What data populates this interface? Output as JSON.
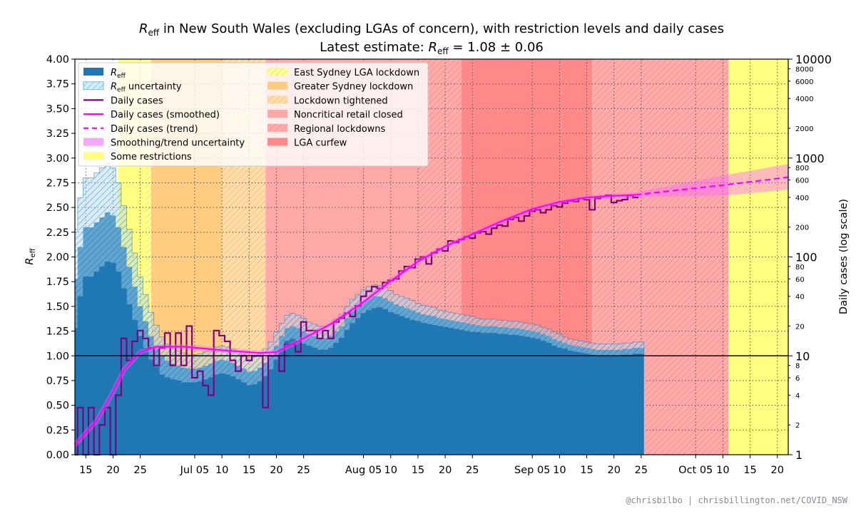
{
  "chart_data": {
    "type": "bar",
    "title_parts": {
      "r": "R",
      "sub": "eff",
      "line1_rest": " in New South Wales (excluding LGAs of concern), with restriction levels and daily cases",
      "line2_prefix": "Latest estimate: ",
      "line2_rest": " = 1.08 ± 0.06"
    },
    "ylabel_left": {
      "r": "R",
      "sub": "eff"
    },
    "ylabel_right": "Daily cases (log scale)",
    "ylim_left": [
      0,
      4
    ],
    "ylim_right_log": [
      1,
      10000
    ],
    "x_range": [
      "06-13",
      "10-22"
    ],
    "yticks_left": [
      "0.00",
      "0.25",
      "0.50",
      "0.75",
      "1.00",
      "1.25",
      "1.50",
      "1.75",
      "2.00",
      "2.25",
      "2.50",
      "2.75",
      "3.00",
      "3.25",
      "3.50",
      "3.75",
      "4.00"
    ],
    "yticks_right_major": [
      {
        "v": 1,
        "label": "1"
      },
      {
        "v": 10,
        "label": "10"
      },
      {
        "v": 100,
        "label": "100"
      },
      {
        "v": 1000,
        "label": "1000"
      },
      {
        "v": 10000,
        "label": "10000"
      }
    ],
    "yticks_right_minor": [
      {
        "v": 2,
        "label": "2"
      },
      {
        "v": 4,
        "label": "4"
      },
      {
        "v": 6,
        "label": "6"
      },
      {
        "v": 8,
        "label": "8"
      },
      {
        "v": 20,
        "label": "20"
      },
      {
        "v": 40,
        "label": "40"
      },
      {
        "v": 60,
        "label": "60"
      },
      {
        "v": 80,
        "label": "80"
      },
      {
        "v": 200,
        "label": "200"
      },
      {
        "v": 400,
        "label": "400"
      },
      {
        "v": 600,
        "label": "600"
      },
      {
        "v": 800,
        "label": "800"
      },
      {
        "v": 2000,
        "label": "2000"
      },
      {
        "v": 4000,
        "label": "4000"
      },
      {
        "v": 6000,
        "label": "6000"
      },
      {
        "v": 8000,
        "label": "8000"
      }
    ],
    "xticks": [
      {
        "d": "06-15",
        "label": "15"
      },
      {
        "d": "06-20",
        "label": "20"
      },
      {
        "d": "06-25",
        "label": "25"
      },
      {
        "d": "07-05",
        "label": "Jul 05"
      },
      {
        "d": "07-10",
        "label": "10"
      },
      {
        "d": "07-15",
        "label": "15"
      },
      {
        "d": "07-20",
        "label": "20"
      },
      {
        "d": "07-25",
        "label": "25"
      },
      {
        "d": "08-05",
        "label": "Aug 05"
      },
      {
        "d": "08-10",
        "label": "10"
      },
      {
        "d": "08-15",
        "label": "15"
      },
      {
        "d": "08-20",
        "label": "20"
      },
      {
        "d": "08-25",
        "label": "25"
      },
      {
        "d": "09-05",
        "label": "Sep 05"
      },
      {
        "d": "09-10",
        "label": "10"
      },
      {
        "d": "09-15",
        "label": "15"
      },
      {
        "d": "09-20",
        "label": "20"
      },
      {
        "d": "09-25",
        "label": "25"
      },
      {
        "d": "10-05",
        "label": "Oct 05"
      },
      {
        "d": "10-10",
        "label": "10"
      },
      {
        "d": "10-15",
        "label": "15"
      },
      {
        "d": "10-20",
        "label": "20"
      }
    ],
    "restrictions": [
      {
        "name": "Some restrictions",
        "start": "06-21",
        "end": "06-27",
        "fill": "#ffff80",
        "hatch": null
      },
      {
        "name": "East Sydney LGA lockdown",
        "start": "06-26",
        "end": "06-27",
        "fill": "#ffff9a",
        "hatch": "#f0e040"
      },
      {
        "name": "Greater Sydney lockdown",
        "start": "06-27",
        "end": "07-10",
        "fill": "#ffcc80",
        "hatch": null
      },
      {
        "name": "Lockdown tightened",
        "start": "07-10",
        "end": "07-18",
        "fill": "#ffdca8",
        "hatch": "#f5b870"
      },
      {
        "name": "Noncritical retail closed",
        "start": "07-18",
        "end": "08-15",
        "fill": "#ffa8a8",
        "hatch": null
      },
      {
        "name": "Regional lockdowns",
        "start": "08-15",
        "end": "08-23",
        "fill": "#ffabab",
        "hatch": "#f58a8a"
      },
      {
        "name": "LGA curfew",
        "start": "08-23",
        "end": "09-16",
        "fill": "#ff8888",
        "hatch": null
      },
      {
        "name": "Regional lockdowns",
        "start": "09-16",
        "end": "10-11",
        "fill": "#ffabab",
        "hatch": "#f58a8a"
      },
      {
        "name": "Some restrictions",
        "start": "10-11",
        "end": "10-22",
        "fill": "#ffff80",
        "hatch": null
      }
    ],
    "reff_start": "06-13",
    "reff": [
      1.78,
      2.1,
      2.3,
      2.3,
      2.35,
      2.4,
      2.45,
      2.42,
      2.3,
      2.1,
      1.9,
      1.7,
      1.5,
      1.35,
      1.2,
      1.1,
      1.0,
      0.95,
      0.92,
      0.9,
      0.88,
      0.87,
      0.87,
      0.88,
      0.9,
      0.92,
      0.95,
      0.96,
      0.95,
      0.93,
      0.9,
      0.87,
      0.84,
      0.85,
      0.88,
      0.93,
      1.0,
      1.1,
      1.2,
      1.28,
      1.3,
      1.28,
      1.25,
      1.22,
      1.2,
      1.18,
      1.18,
      1.2,
      1.25,
      1.3,
      1.38,
      1.45,
      1.5,
      1.55,
      1.58,
      1.6,
      1.6,
      1.58,
      1.55,
      1.52,
      1.5,
      1.48,
      1.46,
      1.44,
      1.42,
      1.41,
      1.4,
      1.38,
      1.37,
      1.36,
      1.35,
      1.34,
      1.33,
      1.32,
      1.31,
      1.3,
      1.3,
      1.3,
      1.29,
      1.29,
      1.28,
      1.28,
      1.27,
      1.26,
      1.25,
      1.24,
      1.22,
      1.2,
      1.17,
      1.15,
      1.13,
      1.11,
      1.1,
      1.09,
      1.08,
      1.07,
      1.06,
      1.06,
      1.06,
      1.06,
      1.06,
      1.07,
      1.07,
      1.08,
      1.08
    ],
    "reff_uncertainty": [
      0.5,
      0.5,
      0.5,
      0.5,
      0.5,
      0.5,
      0.5,
      0.48,
      0.45,
      0.42,
      0.38,
      0.34,
      0.3,
      0.27,
      0.24,
      0.21,
      0.19,
      0.17,
      0.16,
      0.15,
      0.15,
      0.14,
      0.14,
      0.14,
      0.14,
      0.14,
      0.14,
      0.14,
      0.14,
      0.14,
      0.14,
      0.14,
      0.14,
      0.14,
      0.14,
      0.14,
      0.14,
      0.14,
      0.13,
      0.13,
      0.13,
      0.13,
      0.13,
      0.12,
      0.12,
      0.12,
      0.12,
      0.12,
      0.12,
      0.12,
      0.12,
      0.12,
      0.12,
      0.12,
      0.12,
      0.12,
      0.11,
      0.11,
      0.11,
      0.1,
      0.1,
      0.1,
      0.1,
      0.09,
      0.09,
      0.09,
      0.09,
      0.08,
      0.08,
      0.08,
      0.08,
      0.08,
      0.08,
      0.08,
      0.07,
      0.07,
      0.07,
      0.07,
      0.07,
      0.07,
      0.07,
      0.07,
      0.07,
      0.07,
      0.07,
      0.07,
      0.07,
      0.07,
      0.07,
      0.07,
      0.06,
      0.06,
      0.06,
      0.06,
      0.06,
      0.06,
      0.06,
      0.06,
      0.06,
      0.06,
      0.06,
      0.06,
      0.06,
      0.06,
      0.06
    ],
    "cases_start": "06-13",
    "daily_cases": [
      0,
      3,
      0,
      3,
      0,
      2,
      3,
      0,
      4,
      15,
      9,
      14,
      18,
      15,
      12,
      8,
      12,
      17,
      8,
      17,
      8,
      20,
      6,
      7,
      5,
      4,
      18,
      16,
      14,
      9,
      7,
      10,
      9,
      10,
      10,
      3,
      10,
      10,
      7,
      13,
      13,
      11,
      22,
      18,
      18,
      15,
      18,
      15,
      22,
      24,
      27,
      25,
      32,
      40,
      45,
      50,
      48,
      55,
      58,
      60,
      72,
      80,
      78,
      95,
      100,
      85,
      110,
      120,
      115,
      145,
      140,
      150,
      160,
      155,
      175,
      180,
      170,
      195,
      210,
      205,
      240,
      250,
      230,
      260,
      290,
      300,
      280,
      300,
      330,
      320,
      350,
      370,
      365,
      390,
      380,
      300,
      390,
      410,
      420,
      355,
      370,
      380,
      420,
      400
    ],
    "smoothed": [
      [
        "06-13",
        1.25
      ],
      [
        "06-17",
        2.2
      ],
      [
        "06-20",
        4.3
      ],
      [
        "06-22",
        7.2
      ],
      [
        "06-25",
        10.9
      ],
      [
        "06-28",
        12.4
      ],
      [
        "07-03",
        12.4
      ],
      [
        "07-10",
        11.4
      ],
      [
        "07-17",
        10.7
      ],
      [
        "07-20",
        10.9
      ],
      [
        "07-25",
        15
      ],
      [
        "07-30",
        21
      ],
      [
        "08-05",
        35
      ],
      [
        "08-10",
        57
      ],
      [
        "08-15",
        90
      ],
      [
        "08-20",
        128
      ],
      [
        "08-25",
        170
      ],
      [
        "08-30",
        226
      ],
      [
        "09-05",
        305
      ],
      [
        "09-10",
        360
      ],
      [
        "09-15",
        400
      ],
      [
        "09-20",
        415
      ],
      [
        "09-24",
        425
      ]
    ],
    "trend": [
      [
        "09-24",
        425,
        400,
        450
      ],
      [
        "10-11",
        540,
        420,
        680
      ],
      [
        "10-22",
        640,
        480,
        870
      ]
    ],
    "legend_left": [
      {
        "kind": "reff",
        "label_r": "R",
        "label_sub": "eff",
        "label_rest": ""
      },
      {
        "kind": "reff_unc",
        "label_r": "R",
        "label_sub": "eff",
        "label_rest": " uncertainty"
      },
      {
        "kind": "cases",
        "label": "Daily cases"
      },
      {
        "kind": "smoothed",
        "label": "Daily cases (smoothed)"
      },
      {
        "kind": "trend",
        "label": "Daily cases (trend)"
      },
      {
        "kind": "band",
        "label": "Smoothing/trend uncertainty"
      },
      {
        "kind": "yellow",
        "label": "Some restrictions"
      }
    ],
    "legend_right": [
      {
        "label": "East Sydney LGA lockdown",
        "fill": "#ffff9a",
        "hatch": "#f0e040"
      },
      {
        "label": "Greater Sydney lockdown",
        "fill": "#ffcc80",
        "hatch": null
      },
      {
        "label": "Lockdown tightened",
        "fill": "#ffdca8",
        "hatch": "#f5b870"
      },
      {
        "label": "Noncritical retail closed",
        "fill": "#ffa8a8",
        "hatch": null
      },
      {
        "label": "Regional lockdowns",
        "fill": "#ffabab",
        "hatch": "#f58a8a"
      },
      {
        "label": "LGA curfew",
        "fill": "#ff8888",
        "hatch": null
      }
    ],
    "colors": {
      "reff": "#1f77b4",
      "reff_unc": "#add8e6",
      "cases": "#800080",
      "smoothed": "#ff00ff",
      "band": "#ff66ff"
    }
  },
  "footer": "@chrisbilbo | chrisbillington.net/COVID_NSW"
}
